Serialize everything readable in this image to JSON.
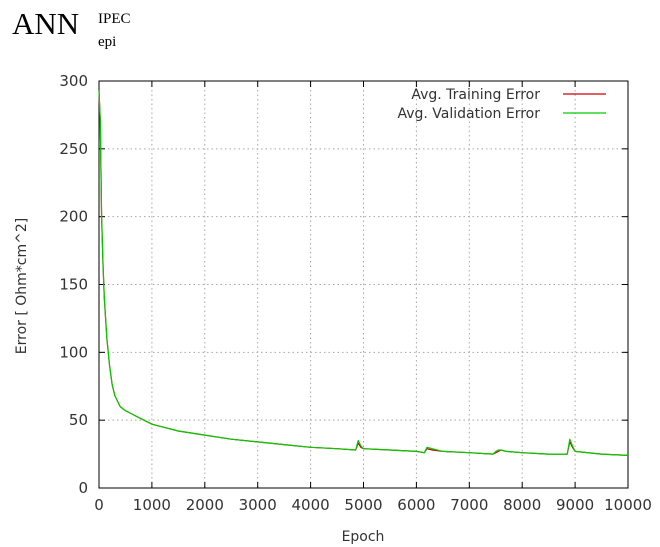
{
  "title": {
    "main": "ANN",
    "superscript": "IPEC",
    "subscript": "epi"
  },
  "chart_data": {
    "type": "line",
    "xlabel": "Epoch",
    "ylabel": "Error [ Ohm*cm^2]",
    "xlim": [
      0,
      10000
    ],
    "ylim": [
      0,
      300
    ],
    "xticks": [
      "0",
      "1000",
      "2000",
      "3000",
      "4000",
      "5000",
      "6000",
      "7000",
      "8000",
      "9000",
      "10000"
    ],
    "yticks": [
      "0",
      "50",
      "100",
      "150",
      "200",
      "250",
      "300"
    ],
    "grid": true,
    "legend_position": "top-right",
    "series": [
      {
        "name": "Avg. Training Error",
        "color": "#cc0000",
        "x": [
          0,
          25,
          50,
          75,
          100,
          150,
          200,
          250,
          300,
          400,
          500,
          600,
          700,
          800,
          1000,
          1200,
          1500,
          2000,
          2500,
          3000,
          3500,
          4000,
          4500,
          4850,
          4900,
          4950,
          5000,
          5500,
          6000,
          6150,
          6200,
          6300,
          6500,
          7000,
          7450,
          7500,
          7550,
          7600,
          7700,
          8000,
          8500,
          8850,
          8900,
          8950,
          9000,
          9500,
          10000
        ],
        "y": [
          293,
          270,
          200,
          165,
          140,
          110,
          90,
          76,
          68,
          60,
          57,
          55,
          53,
          51,
          47,
          45,
          42,
          39,
          36,
          34,
          32,
          30,
          29,
          28,
          33,
          30,
          29,
          28,
          27,
          26,
          29,
          28,
          27,
          26,
          25,
          26,
          27,
          28,
          27,
          26,
          25,
          25,
          34,
          30,
          27,
          25,
          24
        ]
      },
      {
        "name": "Avg. Validation Error",
        "color": "#00cc00",
        "x": [
          0,
          25,
          50,
          75,
          100,
          150,
          200,
          250,
          300,
          400,
          500,
          600,
          700,
          800,
          1000,
          1200,
          1500,
          2000,
          2500,
          3000,
          3500,
          4000,
          4500,
          4850,
          4900,
          4950,
          5000,
          5500,
          6000,
          6150,
          6200,
          6300,
          6500,
          7000,
          7450,
          7500,
          7550,
          7600,
          7700,
          8000,
          8500,
          8850,
          8900,
          8950,
          9000,
          9500,
          10000
        ],
        "y": [
          293,
          270,
          200,
          165,
          140,
          110,
          90,
          76,
          68,
          60,
          57,
          55,
          53,
          51,
          47,
          45,
          42,
          39,
          36,
          34,
          32,
          30,
          29,
          28,
          35,
          31,
          29,
          28,
          27,
          26,
          30,
          29,
          27,
          26,
          25,
          27,
          28,
          28,
          27,
          26,
          25,
          25,
          36,
          31,
          27,
          25,
          24
        ]
      }
    ]
  }
}
